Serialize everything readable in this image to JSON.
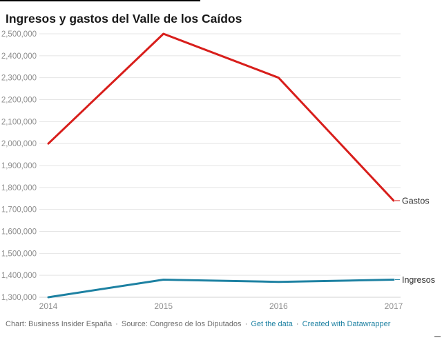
{
  "page": {
    "background": "#ffffff"
  },
  "chart_data": {
    "type": "line",
    "title": "Ingresos y gastos del Valle de los Caídos",
    "xlabel": "",
    "ylabel": "",
    "x": [
      2014,
      2015,
      2016,
      2017
    ],
    "series": [
      {
        "name": "Gastos",
        "color": "#d81e1b",
        "values": [
          2000000,
          2500000,
          2300000,
          1740000
        ]
      },
      {
        "name": "Ingresos",
        "color": "#1d81a2",
        "values": [
          1300000,
          1380000,
          1370000,
          1380000
        ]
      }
    ],
    "ylim": [
      1300000,
      2500000
    ],
    "ytick_step": 100000,
    "grid": true,
    "legend_position": "direct-right-labels",
    "axis_label_color": "#8f8f8f",
    "gridline_color": "#e4e4e4",
    "baseline_color": "#d2d2d2",
    "series_label_color": "#2e2e2e"
  },
  "footer": {
    "separator": "·",
    "link_color": "#1d81a2",
    "parts": [
      {
        "label": "Chart: Business Insider España",
        "link": false,
        "name": "footer-credit-text"
      },
      {
        "label": "Source: Congreso de los Diputados",
        "link": false,
        "name": "footer-source-text"
      },
      {
        "label": "Get the data",
        "link": true,
        "name": "get-the-data-link"
      },
      {
        "label": "Created with Datawrapper",
        "link": true,
        "name": "datawrapper-link"
      }
    ]
  }
}
